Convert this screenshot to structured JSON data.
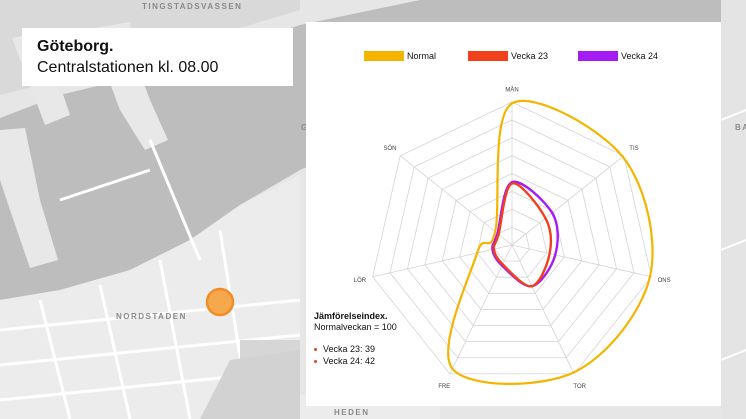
{
  "map": {
    "labels": [
      "TINGSTADSVASSEN",
      "NORDSTADEN",
      "HEDEN",
      "G",
      "BA"
    ],
    "marker_color": "#f28c28"
  },
  "title_card": {
    "city": "Göteborg.",
    "subtitle": "Centralstationen  kl. 08.00"
  },
  "legend": [
    {
      "name": "Normal",
      "color": "#f5b400"
    },
    {
      "name": "Vecka 23",
      "color": "#f0401c"
    },
    {
      "name": "Vecka 24",
      "color": "#a51cf5"
    }
  ],
  "index_box": {
    "title": "Jämförelseindex.",
    "subtitle": "Normalveckan = 100",
    "items": [
      "Vecka 23: 39",
      "Vecka 24: 42"
    ]
  },
  "chart_data": {
    "type": "radar",
    "axes": [
      "MÅN",
      "TIS",
      "ONS",
      "TOR",
      "FRE",
      "LÖR",
      "SÖN"
    ],
    "rmax": 100,
    "gridlines": 8,
    "series": [
      {
        "name": "Normal",
        "color": "#f5b400",
        "values": [
          99,
          99,
          99,
          99,
          96,
          25,
          15
        ]
      },
      {
        "name": "Vecka 23",
        "color": "#f0401c",
        "values": [
          43,
          30,
          27,
          32,
          15,
          13,
          12
        ]
      },
      {
        "name": "Vecka 24",
        "color": "#a51cf5",
        "values": [
          44,
          36,
          31,
          32,
          16,
          14,
          13
        ]
      }
    ]
  }
}
